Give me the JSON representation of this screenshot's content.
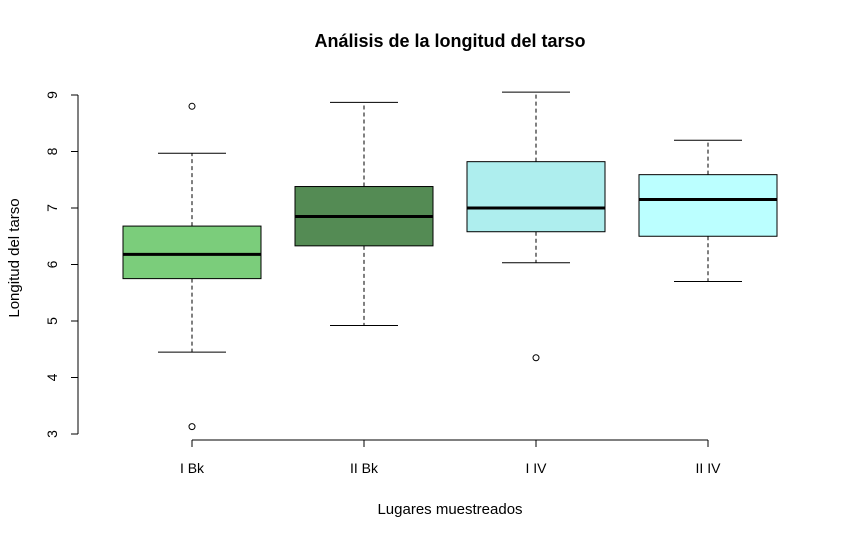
{
  "chart_data": {
    "type": "boxplot",
    "title": "Análisis de la longitud del tarso",
    "xlabel": "Lugares muestreados",
    "ylabel": "Longitud del tarso",
    "ylim": [
      3,
      9
    ],
    "yticks": [
      "3",
      "4",
      "5",
      "6",
      "7",
      "8",
      "9"
    ],
    "categories": [
      "I Bk",
      "II Bk",
      "I IV",
      "II IV"
    ],
    "boxes": [
      {
        "whisker_low": 4.45,
        "q1": 5.75,
        "median": 6.18,
        "q3": 6.68,
        "whisker_high": 7.97,
        "outliers": [
          3.13,
          8.8
        ],
        "color": "#7bcd7b"
      },
      {
        "whisker_low": 4.92,
        "q1": 6.33,
        "median": 6.85,
        "q3": 7.38,
        "whisker_high": 8.87,
        "outliers": [],
        "color": "#548b54"
      },
      {
        "whisker_low": 6.03,
        "q1": 6.58,
        "median": 7.0,
        "q3": 7.82,
        "whisker_high": 9.05,
        "outliers": [
          4.35
        ],
        "color": "#aeeeee"
      },
      {
        "whisker_low": 5.7,
        "q1": 6.5,
        "median": 7.15,
        "q3": 7.59,
        "whisker_high": 8.2,
        "outliers": [],
        "color": "#bbffff"
      }
    ]
  }
}
